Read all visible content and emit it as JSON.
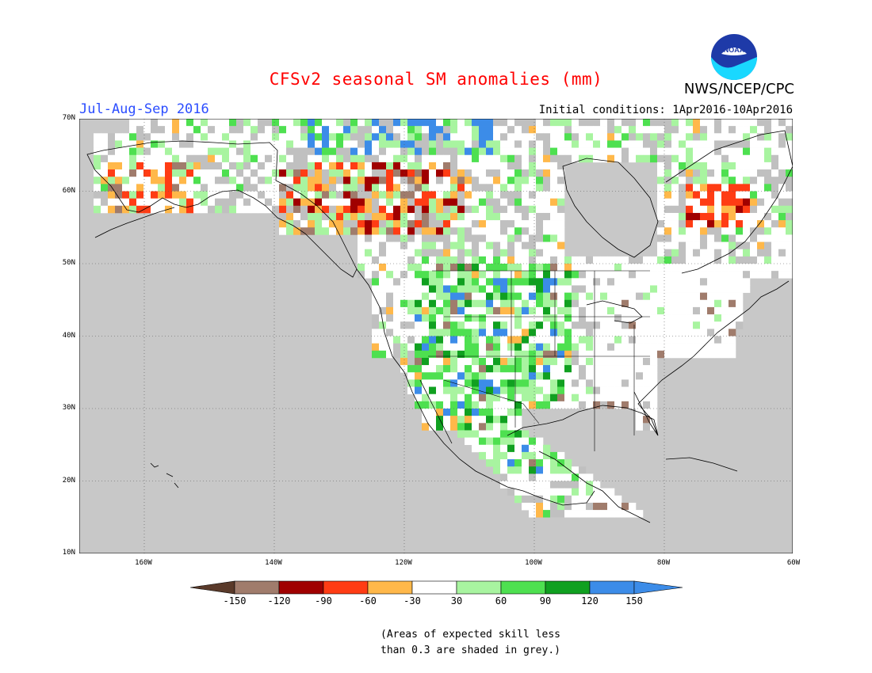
{
  "header": {
    "title": "CFSv2 seasonal SM anomalies (mm)",
    "season": "Jul-Aug-Sep 2016",
    "initial_conditions": "Initial conditions: 1Apr2016-10Apr2016",
    "org": "NWS/NCEP/CPC",
    "logo_text": "NOAA"
  },
  "axes": {
    "lat_labels": [
      "70N",
      "60N",
      "50N",
      "40N",
      "30N",
      "20N",
      "10N"
    ],
    "lon_labels": [
      "160W",
      "140W",
      "120W",
      "100W",
      "80W",
      "60W"
    ]
  },
  "legend": {
    "colors": [
      "#5a3a2a",
      "#a07c6c",
      "#a00000",
      "#ff3c14",
      "#ffb84a",
      "#ffffff",
      "#a8f4a0",
      "#4ee050",
      "#10a020",
      "#3c8ce8",
      "#3c8ce8"
    ],
    "labels": [
      "-150",
      "-120",
      "-90",
      "-60",
      "-30",
      "30",
      "60",
      "90",
      "120",
      "150"
    ]
  },
  "palette": {
    "ocean": "#c8c8c8",
    "grey": "#c0c0c0",
    "white": "#ffffff",
    "lightgreen": "#a8f4a0",
    "green": "#4ee050",
    "darkgreen": "#10a020",
    "blue": "#3c8ce8",
    "orange": "#ffb84a",
    "red": "#ff3c14",
    "darkred": "#a00000",
    "brown": "#a07c6c",
    "darkbrown": "#5a3a2a"
  },
  "note": {
    "line1": "(Areas of expected skill less",
    "line2": "than 0.3 are shaded in grey.)"
  }
}
